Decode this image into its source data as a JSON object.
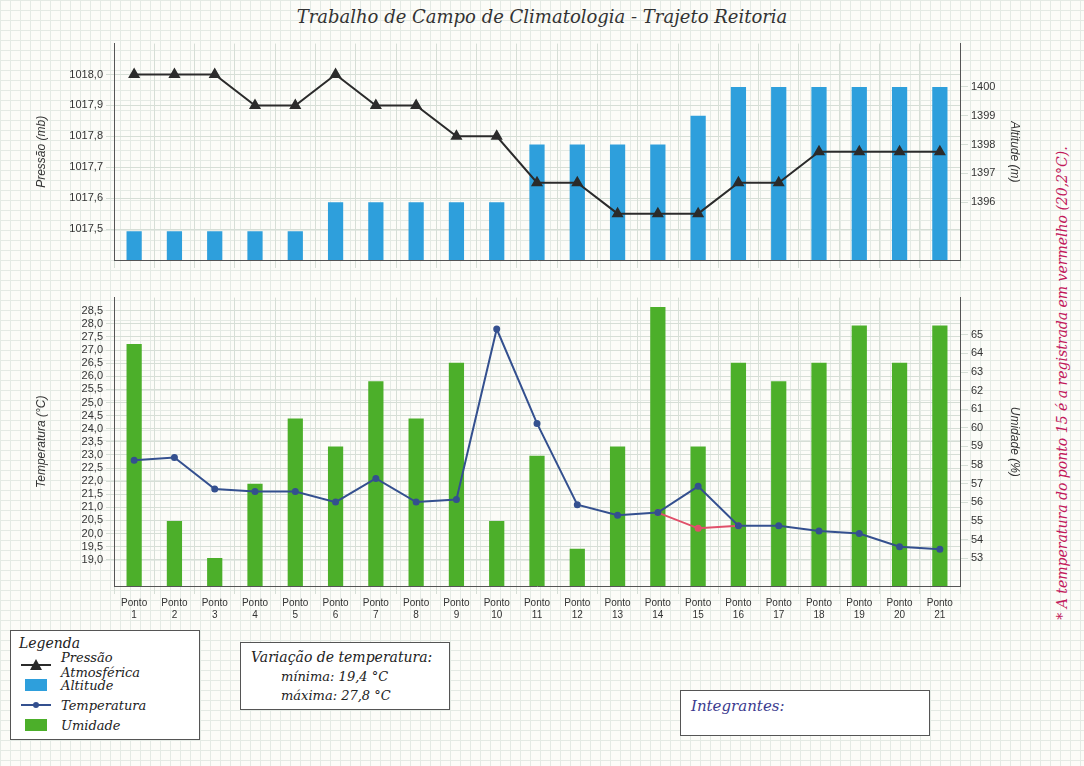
{
  "title": "Trabalho de Campo de Climatologia - Trajeto Reitoria",
  "legend_title": "Legenda",
  "temperature_box": {
    "title": "Variação de temperatura:",
    "lines": [
      "mínima: 19,4 °C",
      "máxima: 27,8 °C"
    ]
  },
  "members_label": "Integrantes:",
  "side_note": "* A temperatura do ponto 15 é a registrada em vermelho (20,2°C).",
  "chart_data": [
    {
      "type": "bar",
      "y_label": "Pressão (mb)",
      "y2_label": "Altitude (m)",
      "categories": [
        null,
        null,
        null,
        null,
        null,
        null,
        null,
        null,
        null,
        null,
        null,
        null,
        null,
        null,
        null,
        null,
        null,
        null,
        null,
        null,
        null
      ],
      "series": [
        {
          "name": "Pressão Atmosférica",
          "type": "line",
          "color": "#2b2b2b",
          "marker": "triangle",
          "values": [
            1018.0,
            1018.0,
            1018.0,
            1017.9,
            1017.9,
            1018.0,
            1017.9,
            1017.9,
            1017.8,
            1017.8,
            1017.65,
            1017.65,
            1017.55,
            1017.55,
            1017.55,
            1017.65,
            1017.65,
            1017.75,
            1017.75,
            1017.75,
            1017.75
          ]
        },
        {
          "name": "Altitude",
          "type": "bar",
          "color": "#2e9fdc",
          "axis": "y2",
          "values": [
            1395,
            1395,
            1395,
            1395,
            1395,
            1396,
            1396,
            1396,
            1396,
            1396,
            1398,
            1398,
            1398,
            1398,
            1399,
            1400,
            1400,
            1400,
            1400,
            1400,
            1400
          ]
        }
      ],
      "ylim": [
        1017.4,
        1018.1
      ],
      "yticks": [
        {
          "value": 1017.5,
          "label": "1017,5"
        },
        {
          "value": 1017.6,
          "label": "1017,6"
        },
        {
          "value": 1017.7,
          "label": "1017,7"
        },
        {
          "value": 1017.8,
          "label": "1017,8"
        },
        {
          "value": 1017.9,
          "label": "1017,9"
        },
        {
          "value": 1018.0,
          "label": "1018,0"
        }
      ],
      "y2lim": [
        1394,
        1401.5
      ],
      "y2ticks": [
        1396,
        1397,
        1398,
        1399,
        1400
      ],
      "grid": true,
      "legend": "bottom left"
    },
    {
      "type": "bar",
      "y_label": "Temperatura (°C)",
      "y2_label": "Umidade (%)",
      "categories": [
        "Ponto 1",
        "Ponto 2",
        "Ponto 3",
        "Ponto 4",
        "Ponto 5",
        "Ponto 6",
        "Ponto 7",
        "Ponto 8",
        "Ponto 9",
        "Ponto 10",
        "Ponto 11",
        "Ponto 12",
        "Ponto 13",
        "Ponto 14",
        "Ponto 15",
        "Ponto 16",
        "Ponto 17",
        "Ponto 18",
        "Ponto 19",
        "Ponto 20",
        "Ponto 21"
      ],
      "series": [
        {
          "name": "Temperatura",
          "type": "line",
          "color": "#34508f",
          "marker": "circle",
          "values": [
            22.8,
            22.9,
            21.7,
            21.6,
            21.6,
            21.2,
            22.1,
            21.2,
            21.3,
            27.8,
            24.2,
            21.1,
            20.7,
            20.8,
            21.8,
            20.3,
            20.3,
            20.1,
            20.0,
            19.5,
            19.4
          ]
        },
        {
          "type": "line",
          "color": "#e0506a",
          "marker": "circle",
          "values": [
            null,
            null,
            null,
            null,
            null,
            null,
            null,
            null,
            null,
            null,
            null,
            null,
            null,
            20.8,
            20.2,
            20.3,
            null,
            null,
            null,
            null,
            null
          ]
        },
        {
          "name": "Umidade",
          "type": "bar",
          "color": "#4caf2a",
          "axis": "y2",
          "values": [
            64.5,
            55,
            53,
            57,
            60.5,
            59,
            62.5,
            60.5,
            63.5,
            55,
            58.5,
            53.5,
            59,
            66.5,
            59,
            63.5,
            62.5,
            63.5,
            65.5,
            63.5,
            65.5
          ]
        }
      ],
      "ylim": [
        18,
        29
      ],
      "yticks": [
        {
          "value": 19.0,
          "label": "19,0"
        },
        {
          "value": 19.5,
          "label": "19,5"
        },
        {
          "value": 20.0,
          "label": "20,0"
        },
        {
          "value": 20.5,
          "label": "20,5"
        },
        {
          "value": 21.0,
          "label": "21,0"
        },
        {
          "value": 21.5,
          "label": "21,5"
        },
        {
          "value": 22.0,
          "label": "22,0"
        },
        {
          "value": 22.5,
          "label": "22,5"
        },
        {
          "value": 23.0,
          "label": "23,0"
        },
        {
          "value": 23.5,
          "label": "23,5"
        },
        {
          "value": 24.0,
          "label": "24,0"
        },
        {
          "value": 24.5,
          "label": "24,5"
        },
        {
          "value": 25.0,
          "label": "25,0"
        },
        {
          "value": 25.5,
          "label": "25,5"
        },
        {
          "value": 26.0,
          "label": "26,0"
        },
        {
          "value": 26.5,
          "label": "26,5"
        },
        {
          "value": 27.0,
          "label": "27,0"
        },
        {
          "value": 27.5,
          "label": "27,5"
        },
        {
          "value": 28.0,
          "label": "28,0"
        },
        {
          "value": 28.5,
          "label": "28,5"
        }
      ],
      "y2lim": [
        51.5,
        67
      ],
      "y2ticks": [
        53,
        54,
        55,
        56,
        57,
        58,
        59,
        60,
        61,
        62,
        63,
        64,
        65
      ],
      "grid": true,
      "legend": "bottom left"
    }
  ]
}
